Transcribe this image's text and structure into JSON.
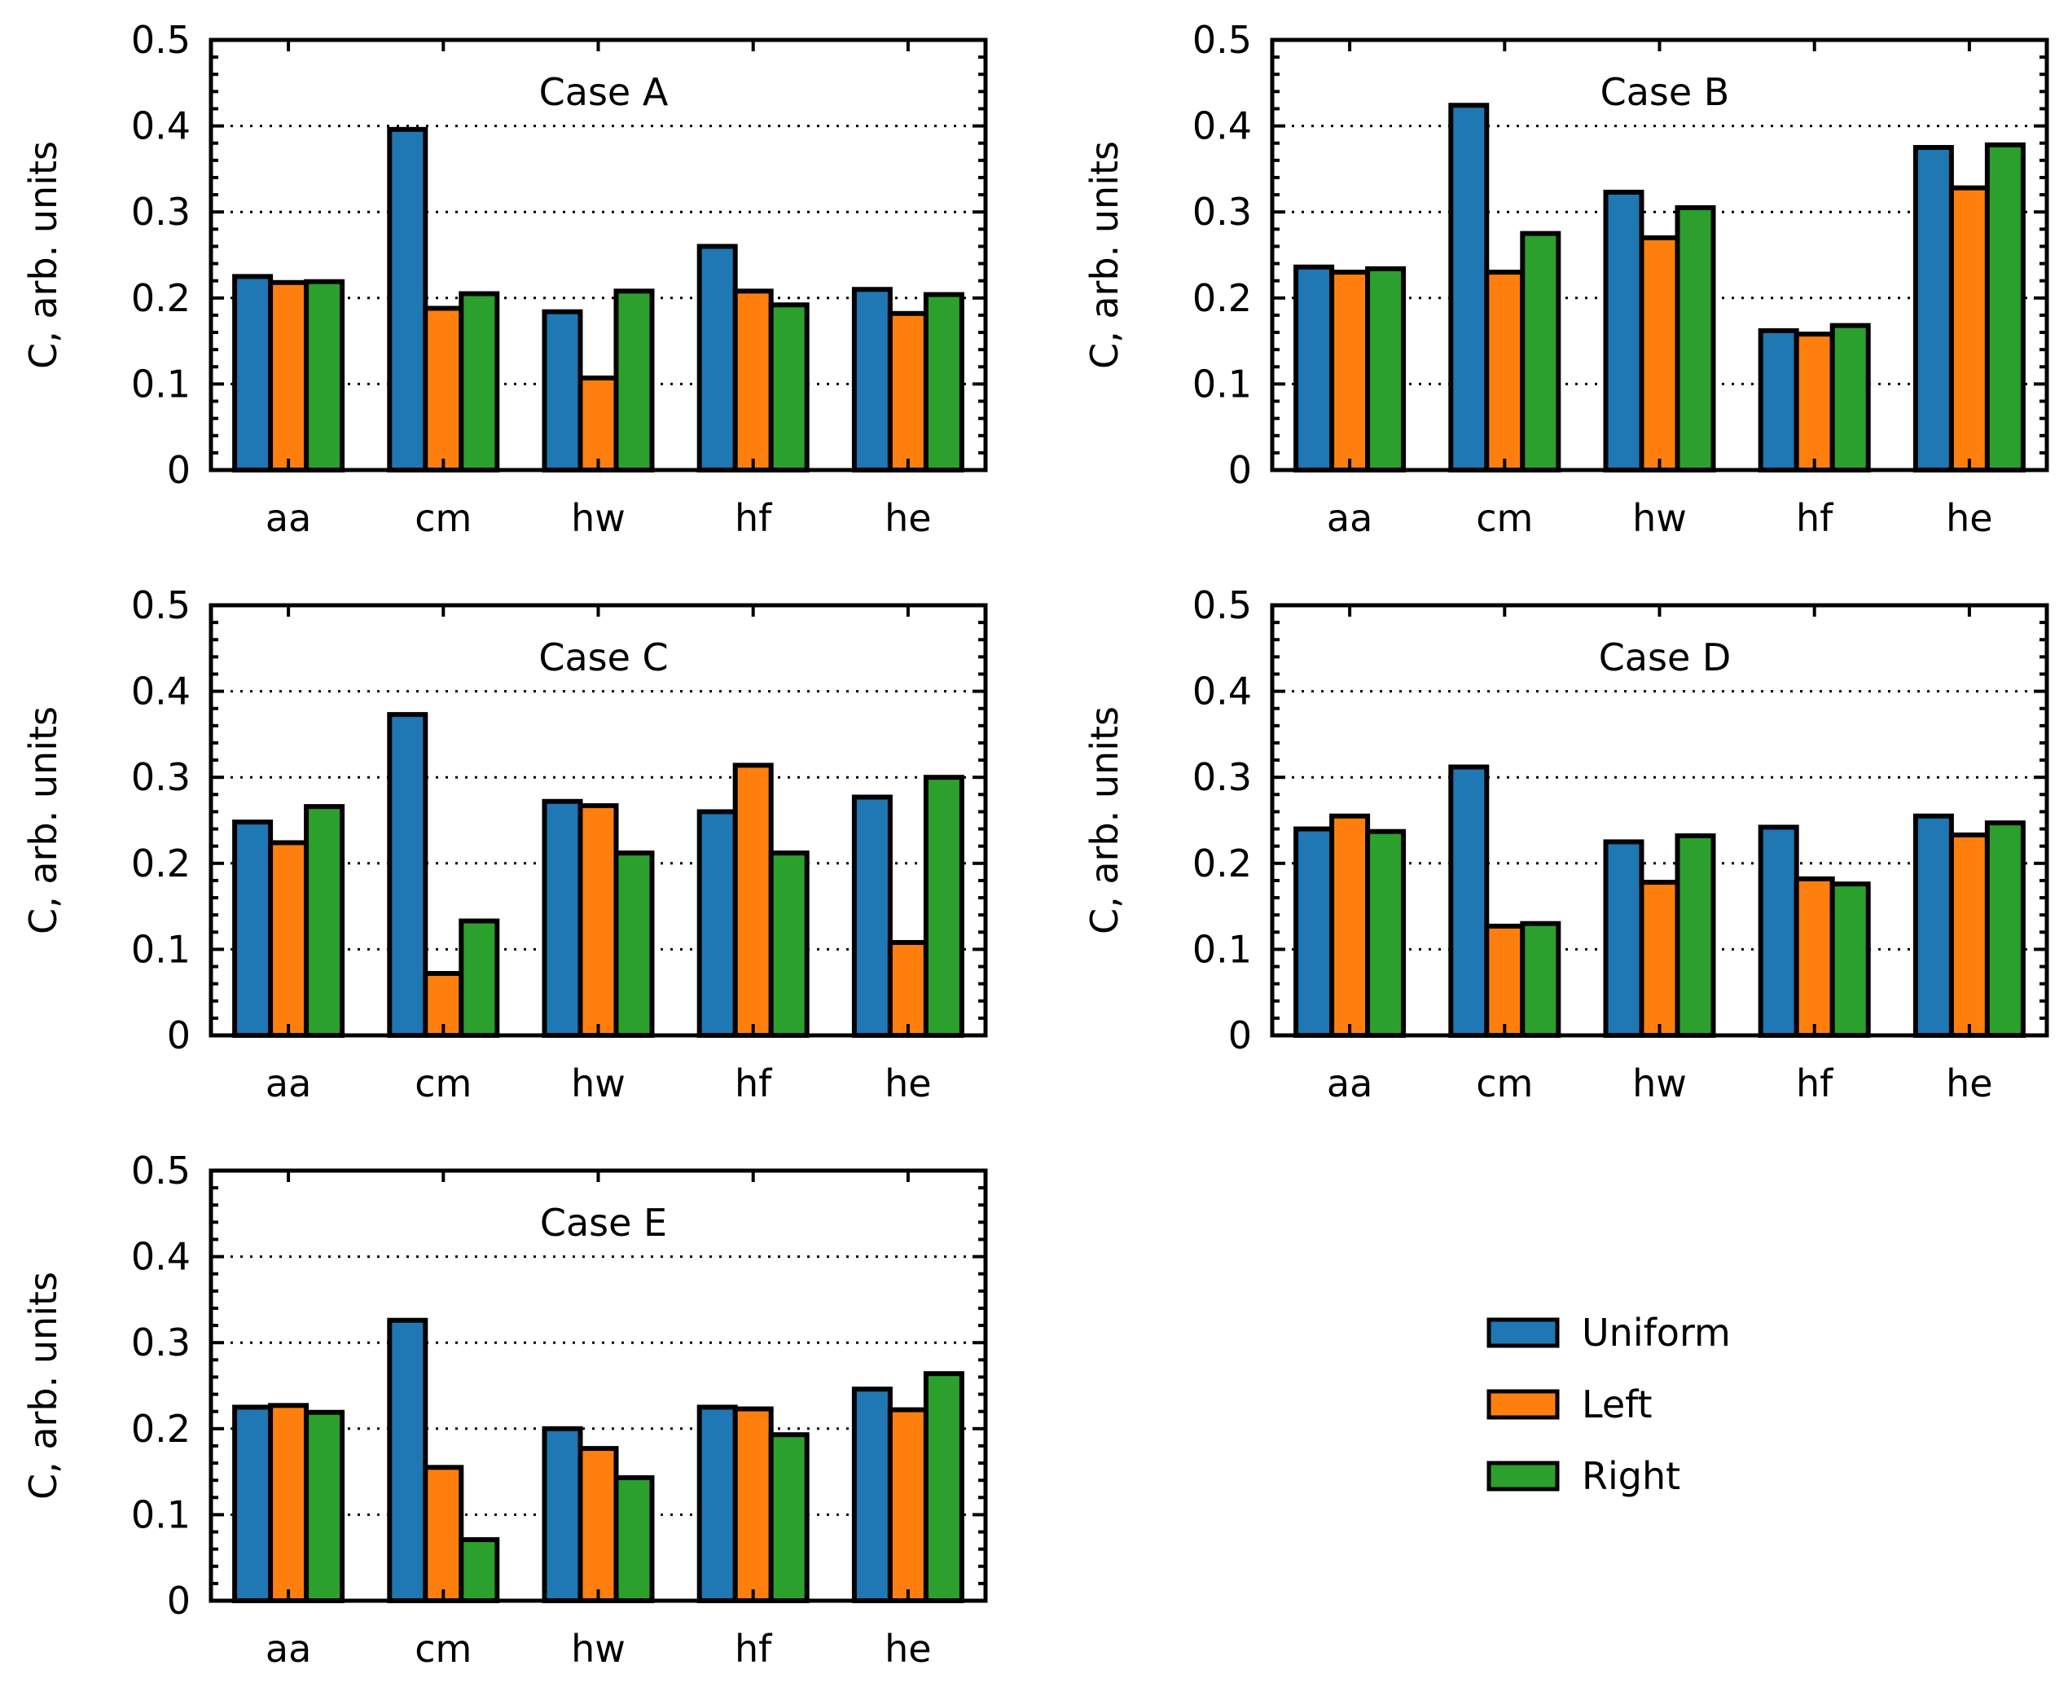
{
  "chart_data": [
    {
      "type": "bar",
      "title": "Case A",
      "ylabel": "C, arb. units",
      "xlabel": "",
      "ylim": [
        0,
        0.5
      ],
      "yticks": [
        "0",
        "0.1",
        "0.2",
        "0.3",
        "0.4",
        "0.5"
      ],
      "categories": [
        "aa",
        "cm",
        "hw",
        "hf",
        "he"
      ],
      "grid": "horizontal dotted",
      "series": [
        {
          "name": "Uniform",
          "values": [
            0.225,
            0.396,
            0.184,
            0.26,
            0.21
          ]
        },
        {
          "name": "Left",
          "values": [
            0.218,
            0.188,
            0.107,
            0.208,
            0.182
          ]
        },
        {
          "name": "Right",
          "values": [
            0.219,
            0.205,
            0.208,
            0.192,
            0.204
          ]
        }
      ]
    },
    {
      "type": "bar",
      "title": "Case B",
      "ylabel": "C, arb. units",
      "xlabel": "",
      "ylim": [
        0,
        0.5
      ],
      "yticks": [
        "0",
        "0.1",
        "0.2",
        "0.3",
        "0.4",
        "0.5"
      ],
      "categories": [
        "aa",
        "cm",
        "hw",
        "hf",
        "he"
      ],
      "grid": "horizontal dotted",
      "series": [
        {
          "name": "Uniform",
          "values": [
            0.236,
            0.424,
            0.323,
            0.162,
            0.375
          ]
        },
        {
          "name": "Left",
          "values": [
            0.23,
            0.23,
            0.27,
            0.158,
            0.328
          ]
        },
        {
          "name": "Right",
          "values": [
            0.234,
            0.275,
            0.305,
            0.168,
            0.378
          ]
        }
      ]
    },
    {
      "type": "bar",
      "title": "Case C",
      "ylabel": "C, arb. units",
      "xlabel": "",
      "ylim": [
        0,
        0.5
      ],
      "yticks": [
        "0",
        "0.1",
        "0.2",
        "0.3",
        "0.4",
        "0.5"
      ],
      "categories": [
        "aa",
        "cm",
        "hw",
        "hf",
        "he"
      ],
      "grid": "horizontal dotted",
      "series": [
        {
          "name": "Uniform",
          "values": [
            0.248,
            0.373,
            0.272,
            0.26,
            0.277
          ]
        },
        {
          "name": "Left",
          "values": [
            0.224,
            0.072,
            0.267,
            0.314,
            0.108
          ]
        },
        {
          "name": "Right",
          "values": [
            0.266,
            0.133,
            0.212,
            0.212,
            0.3
          ]
        }
      ]
    },
    {
      "type": "bar",
      "title": "Case D",
      "ylabel": "C, arb. units",
      "xlabel": "",
      "ylim": [
        0,
        0.5
      ],
      "yticks": [
        "0",
        "0.1",
        "0.2",
        "0.3",
        "0.4",
        "0.5"
      ],
      "categories": [
        "aa",
        "cm",
        "hw",
        "hf",
        "he"
      ],
      "grid": "horizontal dotted",
      "series": [
        {
          "name": "Uniform",
          "values": [
            0.24,
            0.312,
            0.225,
            0.242,
            0.255
          ]
        },
        {
          "name": "Left",
          "values": [
            0.255,
            0.127,
            0.178,
            0.182,
            0.233
          ]
        },
        {
          "name": "Right",
          "values": [
            0.237,
            0.13,
            0.232,
            0.176,
            0.247
          ]
        }
      ]
    },
    {
      "type": "bar",
      "title": "Case E",
      "ylabel": "C, arb. units",
      "xlabel": "",
      "ylim": [
        0,
        0.5
      ],
      "yticks": [
        "0",
        "0.1",
        "0.2",
        "0.3",
        "0.4",
        "0.5"
      ],
      "categories": [
        "aa",
        "cm",
        "hw",
        "hf",
        "he"
      ],
      "grid": "horizontal dotted",
      "series": [
        {
          "name": "Uniform",
          "values": [
            0.225,
            0.326,
            0.2,
            0.225,
            0.246
          ]
        },
        {
          "name": "Left",
          "values": [
            0.227,
            0.155,
            0.177,
            0.223,
            0.222
          ]
        },
        {
          "name": "Right",
          "values": [
            0.219,
            0.071,
            0.143,
            0.193,
            0.264
          ]
        }
      ]
    }
  ],
  "legend": {
    "placement": "bottom-right",
    "entries": [
      {
        "label": "Uniform",
        "color": "#1f77b4"
      },
      {
        "label": "Left",
        "color": "#ff7f0e"
      },
      {
        "label": "Right",
        "color": "#2ca02c"
      }
    ]
  },
  "colors": {
    "Uniform": "#1f77b4",
    "Left": "#ff7f0e",
    "Right": "#2ca02c",
    "frame": "#000000",
    "grid": "#000000"
  }
}
